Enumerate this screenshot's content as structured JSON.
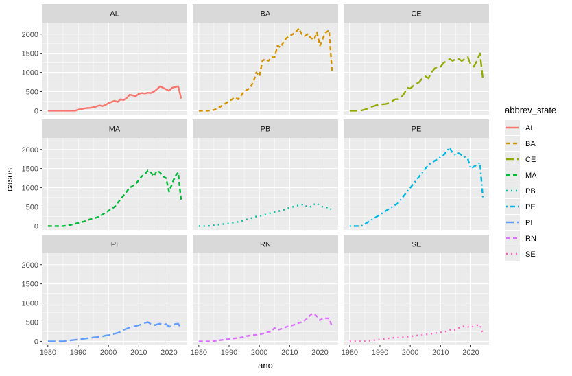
{
  "chart_data": {
    "type": "line",
    "title": "",
    "xlabel": "ano",
    "ylabel": "casos",
    "xlim": [
      1978,
      2026
    ],
    "ylim": [
      -100,
      2300
    ],
    "x_ticks": [
      1980,
      1990,
      2000,
      2010,
      2020
    ],
    "y_ticks": [
      0,
      500,
      1000,
      1500,
      2000
    ],
    "legend_title": "abbrev_state",
    "legend_position": "right",
    "layout": "facet_wrap 3x3",
    "grid": true,
    "x": [
      1980,
      1981,
      1982,
      1983,
      1984,
      1985,
      1986,
      1987,
      1988,
      1989,
      1990,
      1991,
      1992,
      1993,
      1994,
      1995,
      1996,
      1997,
      1998,
      1999,
      2000,
      2001,
      2002,
      2003,
      2004,
      2005,
      2006,
      2007,
      2008,
      2009,
      2010,
      2011,
      2012,
      2013,
      2014,
      2015,
      2016,
      2017,
      2018,
      2019,
      2020,
      2021,
      2022,
      2023,
      2024
    ],
    "series": [
      {
        "name": "AL",
        "color": "#F8766D",
        "dash": "solid",
        "values": [
          0,
          0,
          0,
          0,
          0,
          0,
          0,
          0,
          0,
          0,
          30,
          40,
          60,
          70,
          75,
          90,
          110,
          140,
          120,
          150,
          200,
          230,
          260,
          230,
          300,
          280,
          330,
          420,
          400,
          380,
          440,
          460,
          450,
          470,
          460,
          500,
          560,
          640,
          600,
          560,
          520,
          600,
          620,
          640,
          320
        ]
      },
      {
        "name": "BA",
        "color": "#D39200",
        "dash": "dashed",
        "values": [
          0,
          0,
          0,
          0,
          10,
          20,
          50,
          100,
          150,
          200,
          250,
          300,
          350,
          300,
          400,
          500,
          550,
          600,
          750,
          1000,
          900,
          1300,
          1350,
          1300,
          1400,
          1400,
          1700,
          1650,
          1800,
          1900,
          1950,
          2000,
          2050,
          2150,
          2000,
          1950,
          2000,
          1900,
          1850,
          2050,
          1700,
          1900,
          2050,
          2100,
          1000
        ]
      },
      {
        "name": "CE",
        "color": "#93AA00",
        "dash": "longdash",
        "values": [
          0,
          0,
          0,
          0,
          10,
          30,
          60,
          100,
          120,
          150,
          160,
          170,
          180,
          200,
          250,
          300,
          300,
          350,
          450,
          600,
          580,
          650,
          700,
          750,
          850,
          900,
          850,
          1000,
          1100,
          1150,
          1150,
          1250,
          1300,
          1350,
          1300,
          1350,
          1350,
          1300,
          1350,
          1400,
          1200,
          1150,
          1300,
          1500,
          800
        ]
      },
      {
        "name": "MA",
        "color": "#00BA38",
        "dash": "dashed",
        "values": [
          0,
          0,
          0,
          0,
          0,
          0,
          10,
          20,
          40,
          60,
          80,
          100,
          120,
          150,
          180,
          200,
          220,
          250,
          300,
          350,
          400,
          450,
          500,
          600,
          700,
          800,
          900,
          1000,
          1050,
          1100,
          1200,
          1300,
          1350,
          1450,
          1400,
          1300,
          1450,
          1400,
          1300,
          1250,
          900,
          1100,
          1300,
          1400,
          650
        ]
      },
      {
        "name": "PB",
        "color": "#00C19F",
        "dash": "dotted",
        "values": [
          0,
          0,
          0,
          0,
          10,
          20,
          30,
          40,
          50,
          60,
          70,
          80,
          100,
          110,
          130,
          150,
          180,
          200,
          220,
          250,
          260,
          280,
          300,
          320,
          350,
          360,
          380,
          400,
          420,
          450,
          480,
          500,
          520,
          540,
          560,
          500,
          540,
          500,
          560,
          600,
          520,
          500,
          480,
          500,
          400
        ]
      },
      {
        "name": "PE",
        "color": "#00B9E3",
        "dash": "dotdash",
        "values": [
          0,
          0,
          0,
          0,
          10,
          50,
          100,
          150,
          200,
          250,
          300,
          350,
          400,
          450,
          500,
          550,
          600,
          700,
          800,
          900,
          1000,
          1100,
          1200,
          1300,
          1400,
          1500,
          1600,
          1650,
          1700,
          1750,
          1800,
          1850,
          1950,
          2050,
          1900,
          1850,
          1900,
          1850,
          1800,
          1750,
          1500,
          1550,
          1600,
          1650,
          700
        ]
      },
      {
        "name": "PI",
        "color": "#619CFF",
        "dash": "longdash",
        "values": [
          0,
          0,
          0,
          0,
          0,
          0,
          10,
          20,
          30,
          40,
          50,
          60,
          70,
          80,
          90,
          100,
          110,
          120,
          130,
          150,
          160,
          180,
          200,
          220,
          250,
          300,
          330,
          360,
          380,
          400,
          420,
          450,
          480,
          500,
          450,
          420,
          440,
          460,
          420,
          450,
          380,
          400,
          450,
          460,
          330
        ]
      },
      {
        "name": "RN",
        "color": "#DB72FB",
        "dash": "dashed",
        "values": [
          0,
          0,
          0,
          0,
          0,
          10,
          20,
          30,
          40,
          50,
          60,
          70,
          80,
          90,
          100,
          120,
          140,
          150,
          160,
          170,
          180,
          200,
          220,
          240,
          260,
          350,
          300,
          320,
          340,
          380,
          400,
          420,
          450,
          480,
          500,
          550,
          600,
          700,
          720,
          650,
          550,
          600,
          600,
          600,
          380
        ]
      },
      {
        "name": "SE",
        "color": "#FF61C3",
        "dash": "dotted",
        "values": [
          0,
          0,
          0,
          0,
          0,
          0,
          10,
          20,
          30,
          40,
          50,
          60,
          70,
          80,
          90,
          100,
          100,
          110,
          110,
          120,
          130,
          140,
          150,
          160,
          170,
          180,
          190,
          200,
          210,
          220,
          230,
          250,
          260,
          300,
          280,
          300,
          350,
          380,
          400,
          380,
          360,
          400,
          420,
          430,
          200
        ]
      }
    ]
  }
}
